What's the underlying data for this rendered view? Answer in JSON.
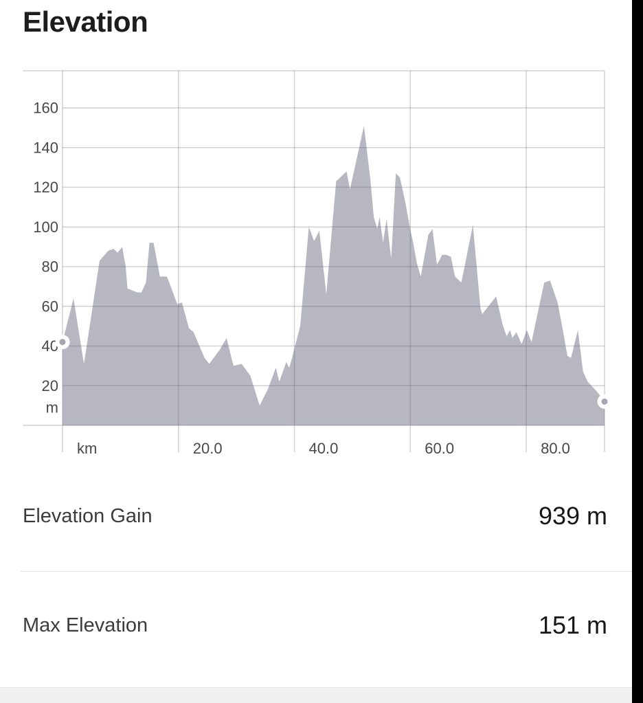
{
  "page": {
    "title": "Elevation"
  },
  "chart_data": {
    "type": "area",
    "title": "Elevation",
    "xlabel": "km",
    "ylabel": "m",
    "xlim": [
      0,
      93.5
    ],
    "ylim": [
      0,
      180
    ],
    "grid": true,
    "legend": false,
    "x_ticks": [
      {
        "value": 0,
        "label": "km"
      },
      {
        "value": 20,
        "label": "20.0"
      },
      {
        "value": 40,
        "label": "40.0"
      },
      {
        "value": 60,
        "label": "60.0"
      },
      {
        "value": 80,
        "label": "80.0"
      }
    ],
    "y_ticks": [
      {
        "value": 20,
        "label": "20"
      },
      {
        "value": 40,
        "label": "40"
      },
      {
        "value": 60,
        "label": "60"
      },
      {
        "value": 80,
        "label": "80"
      },
      {
        "value": 100,
        "label": "100"
      },
      {
        "value": 120,
        "label": "120"
      },
      {
        "value": 140,
        "label": "140"
      },
      {
        "value": 160,
        "label": "160"
      }
    ],
    "y_unit_tick": {
      "value": 9,
      "label": "m"
    },
    "colors": {
      "area_fill": "#b7b7c2",
      "grid_line": "rgba(85,85,110,0.28)",
      "axis_text": "#48484c",
      "marker_ring": "#ffffff",
      "marker_dot": "#a6a6b4"
    },
    "series": [
      {
        "name": "elevation-profile",
        "points_km_m": [
          [
            0,
            42
          ],
          [
            1.9,
            64
          ],
          [
            3.7,
            31
          ],
          [
            6.4,
            83
          ],
          [
            7.9,
            88
          ],
          [
            8.8,
            89
          ],
          [
            9.5,
            87
          ],
          [
            10.3,
            90
          ],
          [
            10.9,
            80
          ],
          [
            11.2,
            69
          ],
          [
            12.9,
            67
          ],
          [
            13.6,
            67
          ],
          [
            14.4,
            72
          ],
          [
            15.0,
            92
          ],
          [
            15.7,
            92
          ],
          [
            16.8,
            75
          ],
          [
            18.0,
            75
          ],
          [
            18.8,
            69
          ],
          [
            19.8,
            61
          ],
          [
            20.6,
            62
          ],
          [
            21.8,
            49
          ],
          [
            22.6,
            47
          ],
          [
            24.5,
            34
          ],
          [
            25.3,
            31
          ],
          [
            27.1,
            38
          ],
          [
            28.3,
            44
          ],
          [
            29.5,
            30
          ],
          [
            30.9,
            31
          ],
          [
            32.4,
            25
          ],
          [
            34.0,
            10
          ],
          [
            35.4,
            18
          ],
          [
            36.8,
            29
          ],
          [
            37.4,
            22
          ],
          [
            38.6,
            32
          ],
          [
            39.1,
            29
          ],
          [
            39.5,
            33
          ],
          [
            41.0,
            50
          ],
          [
            41.3,
            60
          ],
          [
            42.5,
            100
          ],
          [
            43.4,
            93
          ],
          [
            44.3,
            98
          ],
          [
            45.5,
            66
          ],
          [
            47.2,
            123
          ],
          [
            49.0,
            128
          ],
          [
            49.6,
            119
          ],
          [
            52.0,
            151
          ],
          [
            53.1,
            124
          ],
          [
            53.7,
            105
          ],
          [
            54.3,
            99
          ],
          [
            54.7,
            105
          ],
          [
            55.3,
            92
          ],
          [
            55.9,
            104
          ],
          [
            56.7,
            84
          ],
          [
            57.5,
            127
          ],
          [
            58.2,
            125
          ],
          [
            59.1,
            113
          ],
          [
            59.9,
            100
          ],
          [
            60.5,
            92
          ],
          [
            61.1,
            82
          ],
          [
            61.8,
            75
          ],
          [
            63.1,
            96
          ],
          [
            63.8,
            99
          ],
          [
            64.6,
            81
          ],
          [
            65.5,
            86
          ],
          [
            66.2,
            86
          ],
          [
            67.0,
            85
          ],
          [
            67.7,
            75
          ],
          [
            68.8,
            72
          ],
          [
            70.8,
            101
          ],
          [
            72.1,
            59
          ],
          [
            72.4,
            56
          ],
          [
            74.8,
            65
          ],
          [
            75.9,
            51
          ],
          [
            76.6,
            45
          ],
          [
            77.2,
            48
          ],
          [
            77.6,
            44
          ],
          [
            78.3,
            47
          ],
          [
            79.2,
            41
          ],
          [
            80.1,
            48
          ],
          [
            80.9,
            42
          ],
          [
            83.1,
            72
          ],
          [
            84.1,
            73
          ],
          [
            85.4,
            62
          ],
          [
            86.0,
            53
          ],
          [
            87.1,
            35
          ],
          [
            87.7,
            34
          ],
          [
            88.9,
            48
          ],
          [
            89.8,
            27
          ],
          [
            90.6,
            22
          ],
          [
            92.2,
            17
          ],
          [
            93.5,
            12
          ]
        ]
      }
    ],
    "markers": {
      "start": {
        "x_km": 0,
        "y_m": 42
      },
      "end": {
        "x_km": 93.5,
        "y_m": 12
      }
    }
  },
  "stats": [
    {
      "label": "Elevation Gain",
      "value": "939 m"
    },
    {
      "label": "Max Elevation",
      "value": "151 m"
    }
  ]
}
